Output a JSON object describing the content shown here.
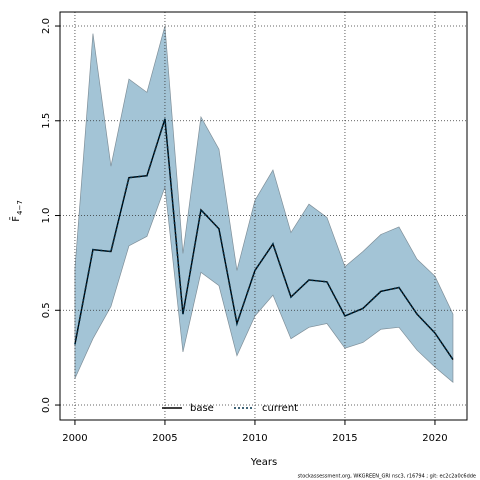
{
  "chart_data": {
    "type": "line",
    "xlabel": "Years",
    "ylabel": "F̄",
    "ylabel_sub": "4−7",
    "footer": "stockassessment.org, WKGREEN_GRI nsc3, r16794 ; git: ec2c2a0c6dde",
    "x": [
      2000,
      2001,
      2002,
      2003,
      2004,
      2005,
      2006,
      2007,
      2008,
      2009,
      2010,
      2011,
      2012,
      2013,
      2014,
      2015,
      2016,
      2017,
      2018,
      2019,
      2020,
      2021
    ],
    "series": [
      {
        "name": "base",
        "color": "#000000",
        "dash": false,
        "values": [
          0.32,
          0.82,
          0.81,
          1.2,
          1.21,
          1.51,
          0.48,
          1.03,
          0.93,
          0.43,
          0.71,
          0.85,
          0.57,
          0.66,
          0.65,
          0.47,
          0.51,
          0.6,
          0.62,
          0.48,
          0.38,
          0.24
        ]
      },
      {
        "name": "current",
        "color": "#00304a",
        "dash": true,
        "values": [
          0.32,
          0.82,
          0.81,
          1.2,
          1.21,
          1.51,
          0.48,
          1.03,
          0.93,
          0.43,
          0.71,
          0.85,
          0.57,
          0.66,
          0.65,
          0.47,
          0.51,
          0.6,
          0.62,
          0.48,
          0.38,
          0.24
        ]
      }
    ],
    "band": {
      "color": "#a3c4d6",
      "upper": [
        0.72,
        1.96,
        1.26,
        1.72,
        1.65,
        2.0,
        0.8,
        1.52,
        1.35,
        0.71,
        1.08,
        1.24,
        0.91,
        1.06,
        0.99,
        0.73,
        0.81,
        0.9,
        0.94,
        0.77,
        0.68,
        0.48
      ],
      "lower": [
        0.14,
        0.35,
        0.52,
        0.84,
        0.89,
        1.15,
        0.28,
        0.7,
        0.63,
        0.26,
        0.47,
        0.58,
        0.35,
        0.41,
        0.43,
        0.3,
        0.33,
        0.4,
        0.41,
        0.29,
        0.2,
        0.12
      ]
    },
    "xlim": [
      1999.17,
      2021.78
    ],
    "ylim": [
      -0.079,
      2.074
    ],
    "xticks": [
      2000,
      2005,
      2010,
      2015,
      2020
    ],
    "yticks": [
      {
        "value": 0,
        "label": "0.0"
      },
      0.5,
      {
        "value": 1,
        "label": "1.0"
      },
      1.5,
      {
        "value": 2,
        "label": "2.0"
      }
    ],
    "grid": true,
    "legend": "bottom"
  }
}
